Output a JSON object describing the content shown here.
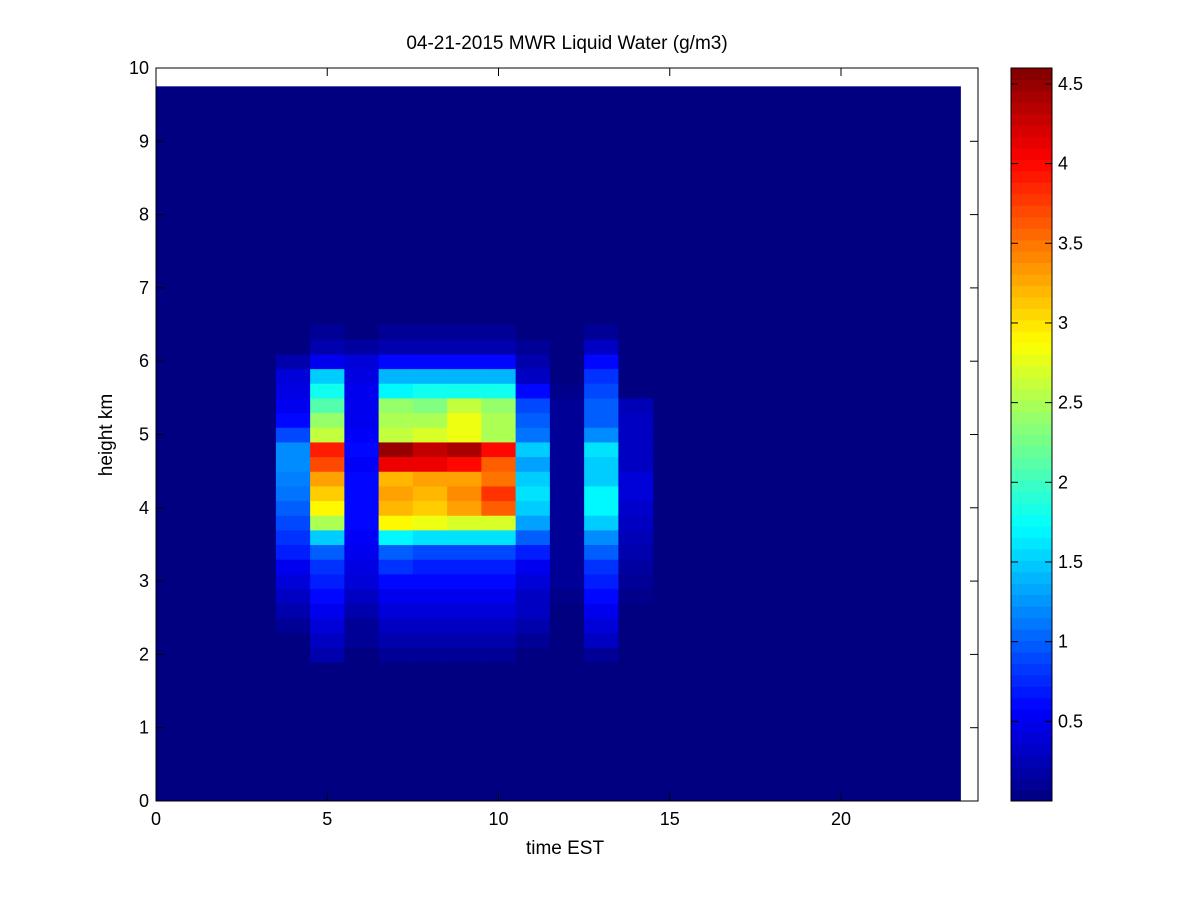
{
  "chart_data": {
    "type": "heatmap",
    "title": "04-21-2015 MWR Liquid Water (g/m3)",
    "xlabel": "time EST",
    "ylabel": "height km",
    "xlim": [
      0,
      24
    ],
    "ylim": [
      0,
      10
    ],
    "x_ticks": [
      "0",
      "5",
      "10",
      "15",
      "20"
    ],
    "y_ticks": [
      "0",
      "1",
      "2",
      "3",
      "4",
      "5",
      "6",
      "7",
      "8",
      "9",
      "10"
    ],
    "grid": false,
    "colormap": "jet",
    "colorbar": {
      "range": [
        0,
        4.6
      ],
      "ticks": [
        "0.5",
        "1",
        "1.5",
        "2",
        "2.5",
        "3",
        "3.5",
        "4",
        "4.5"
      ]
    },
    "data_extent": {
      "x": [
        0,
        23.5
      ],
      "y": [
        0,
        9.75
      ]
    },
    "height_levels": [
      2.0,
      2.2,
      2.4,
      2.6,
      2.8,
      3.0,
      3.2,
      3.4,
      3.6,
      3.8,
      4.0,
      4.2,
      4.4,
      4.6,
      4.8,
      5.0,
      5.2,
      5.4,
      5.6,
      5.8,
      6.0,
      6.2,
      6.4
    ],
    "columns": [
      {
        "t0": 3.5,
        "t1": 4.5,
        "values": [
          0,
          0,
          0.1,
          0.2,
          0.3,
          0.4,
          0.5,
          0.7,
          0.8,
          0.9,
          1.0,
          1.1,
          1.15,
          1.2,
          1.2,
          0.9,
          0.6,
          0.5,
          0.45,
          0.4,
          0.2,
          0,
          0
        ]
      },
      {
        "t0": 4.5,
        "t1": 5.5,
        "values": [
          0.2,
          0.3,
          0.4,
          0.5,
          0.6,
          0.7,
          0.8,
          1.0,
          1.5,
          2.5,
          2.9,
          3.1,
          3.3,
          3.7,
          3.9,
          2.6,
          2.4,
          2.1,
          1.8,
          1.5,
          0.5,
          0.2,
          0.1
        ]
      },
      {
        "t0": 5.5,
        "t1": 6.5,
        "values": [
          0,
          0.1,
          0.1,
          0.2,
          0.3,
          0.4,
          0.45,
          0.5,
          0.55,
          0.6,
          0.6,
          0.6,
          0.6,
          0.55,
          0.6,
          0.55,
          0.5,
          0.5,
          0.5,
          0.45,
          0.4,
          0.15,
          0
        ]
      },
      {
        "t0": 6.5,
        "t1": 7.5,
        "values": [
          0.1,
          0.2,
          0.3,
          0.4,
          0.5,
          0.6,
          0.8,
          1.0,
          1.7,
          2.9,
          3.2,
          3.3,
          3.2,
          4.1,
          4.5,
          2.6,
          2.5,
          2.4,
          1.7,
          1.4,
          0.6,
          0.2,
          0.1
        ]
      },
      {
        "t0": 7.5,
        "t1": 8.5,
        "values": [
          0.1,
          0.2,
          0.3,
          0.4,
          0.5,
          0.6,
          0.7,
          0.9,
          1.6,
          2.8,
          3.1,
          3.2,
          3.3,
          4.1,
          4.3,
          2.7,
          2.5,
          2.3,
          1.8,
          1.4,
          0.6,
          0.2,
          0.1
        ]
      },
      {
        "t0": 8.5,
        "t1": 9.5,
        "values": [
          0.1,
          0.2,
          0.3,
          0.4,
          0.5,
          0.6,
          0.7,
          0.9,
          1.6,
          2.7,
          3.3,
          3.4,
          3.3,
          4.0,
          4.4,
          2.8,
          2.8,
          2.6,
          1.8,
          1.4,
          0.6,
          0.2,
          0.1
        ]
      },
      {
        "t0": 9.5,
        "t1": 10.5,
        "values": [
          0.1,
          0.2,
          0.3,
          0.4,
          0.5,
          0.6,
          0.7,
          0.9,
          1.6,
          2.7,
          3.6,
          3.8,
          3.5,
          3.6,
          4.0,
          2.5,
          2.5,
          2.4,
          1.8,
          1.4,
          0.6,
          0.2,
          0.1
        ]
      },
      {
        "t0": 10.5,
        "t1": 11.5,
        "values": [
          0,
          0.1,
          0.2,
          0.3,
          0.3,
          0.4,
          0.5,
          0.7,
          1.0,
          1.3,
          1.5,
          1.6,
          1.5,
          1.3,
          1.5,
          1.1,
          1.0,
          0.9,
          0.6,
          0.3,
          0.2,
          0.1,
          0
        ]
      },
      {
        "t0": 11.5,
        "t1": 12.5,
        "values": [
          0,
          0,
          0,
          0,
          0.05,
          0.1,
          0.1,
          0.1,
          0.1,
          0.1,
          0.1,
          0.1,
          0.1,
          0.1,
          0.1,
          0.1,
          0.1,
          0.1,
          0.05,
          0,
          0,
          0,
          0
        ]
      },
      {
        "t0": 12.5,
        "t1": 13.5,
        "values": [
          0.1,
          0.3,
          0.4,
          0.5,
          0.6,
          0.7,
          0.8,
          1.0,
          1.2,
          1.5,
          1.7,
          1.7,
          1.5,
          1.5,
          1.6,
          1.2,
          1.0,
          1.0,
          0.9,
          0.8,
          0.6,
          0.3,
          0.1
        ]
      },
      {
        "t0": 13.5,
        "t1": 14.5,
        "values": [
          0,
          0,
          0,
          0,
          0.05,
          0.1,
          0.15,
          0.2,
          0.25,
          0.3,
          0.35,
          0.4,
          0.4,
          0.3,
          0.3,
          0.3,
          0.3,
          0.25,
          0,
          0,
          0,
          0,
          0
        ]
      }
    ]
  }
}
